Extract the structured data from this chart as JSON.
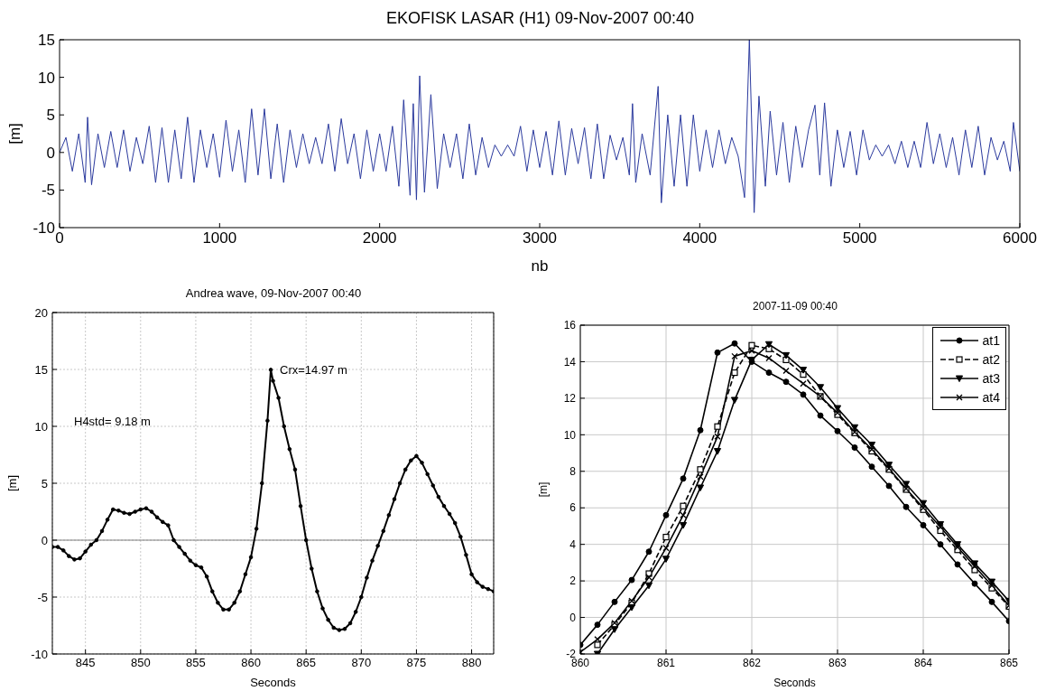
{
  "chart_data": [
    {
      "type": "line",
      "title": "EKOFISK LASAR (H1) 09-Nov-2007 00:40",
      "xlabel": "nb",
      "ylabel": "[m]",
      "xlim": [
        0,
        6000
      ],
      "xticks": [
        0,
        1000,
        2000,
        3000,
        4000,
        5000,
        6000
      ],
      "ylim": [
        -10,
        15
      ],
      "yticks": [
        -10,
        -5,
        0,
        5,
        10,
        15
      ],
      "grid": false,
      "legend": false,
      "marker": "none",
      "series": [
        {
          "color": "#2b3a9e",
          "x": [
            0,
            40,
            80,
            120,
            160,
            175,
            200,
            240,
            280,
            320,
            360,
            400,
            440,
            480,
            520,
            560,
            600,
            640,
            680,
            720,
            760,
            800,
            840,
            880,
            920,
            960,
            1000,
            1040,
            1080,
            1120,
            1160,
            1200,
            1240,
            1280,
            1320,
            1360,
            1400,
            1440,
            1480,
            1520,
            1560,
            1600,
            1640,
            1680,
            1720,
            1760,
            1800,
            1840,
            1880,
            1920,
            1960,
            2000,
            2040,
            2080,
            2120,
            2150,
            2190,
            2210,
            2230,
            2250,
            2280,
            2320,
            2360,
            2400,
            2440,
            2480,
            2520,
            2560,
            2600,
            2640,
            2680,
            2720,
            2760,
            2800,
            2840,
            2880,
            2920,
            2960,
            3000,
            3040,
            3080,
            3120,
            3160,
            3200,
            3240,
            3280,
            3320,
            3360,
            3400,
            3440,
            3480,
            3520,
            3560,
            3580,
            3600,
            3640,
            3690,
            3740,
            3760,
            3800,
            3840,
            3880,
            3920,
            3960,
            4000,
            4040,
            4080,
            4120,
            4160,
            4200,
            4240,
            4280,
            4310,
            4340,
            4370,
            4410,
            4440,
            4480,
            4520,
            4560,
            4600,
            4640,
            4680,
            4720,
            4750,
            4780,
            4820,
            4860,
            4900,
            4940,
            4980,
            5020,
            5060,
            5100,
            5140,
            5180,
            5220,
            5260,
            5300,
            5340,
            5380,
            5420,
            5460,
            5500,
            5540,
            5580,
            5620,
            5660,
            5700,
            5740,
            5780,
            5820,
            5860,
            5900,
            5940,
            5960,
            6000
          ],
          "values": [
            0,
            2,
            -2.5,
            2.5,
            -4,
            4.7,
            -4.3,
            2.5,
            -2,
            2.8,
            -2,
            3,
            -2.5,
            2,
            -1.5,
            3.5,
            -4,
            3.3,
            -4,
            3,
            -3.5,
            4.7,
            -4,
            3,
            -2,
            2.5,
            -3.3,
            4.3,
            -2.5,
            3,
            -4,
            5.8,
            -3,
            5.8,
            -3.5,
            3.8,
            -4,
            3,
            -2,
            2.5,
            -1.5,
            2,
            -1.5,
            3.8,
            -2.5,
            4.5,
            -1.5,
            2.5,
            -3.5,
            3,
            -2.5,
            2.5,
            -2.5,
            3.5,
            -4.5,
            7,
            -5.7,
            6.5,
            -6.3,
            10.2,
            -5.3,
            7.7,
            -4.8,
            2.5,
            -2,
            2.5,
            -3.5,
            3.8,
            -3,
            2,
            -2,
            1,
            -0.5,
            1,
            -0.5,
            3.5,
            -2.5,
            3,
            -2,
            2.8,
            -3,
            4.2,
            -3,
            3.2,
            -1.5,
            3.3,
            -3.5,
            3.8,
            -3.5,
            2.3,
            -1,
            2,
            -3,
            6.5,
            -4,
            2.5,
            -3,
            8.8,
            -6.7,
            5,
            -4.5,
            5,
            -4.5,
            5,
            -2.5,
            3,
            -2,
            3,
            -1.5,
            2,
            -0.5,
            -6,
            15,
            -8,
            7.5,
            -4.5,
            5.5,
            -3,
            4,
            -4,
            3.5,
            -2,
            3,
            6.3,
            -3,
            6.6,
            -4.5,
            3,
            -2,
            2.8,
            -3,
            3,
            -1,
            1,
            -0.5,
            1,
            -1.5,
            1.5,
            -2,
            1.5,
            -2,
            4,
            -1.5,
            2.5,
            -2,
            2,
            -3,
            3,
            -2,
            3.5,
            -3,
            2,
            -1,
            1.5,
            -2.5,
            4,
            -2.5
          ]
        }
      ]
    },
    {
      "type": "line",
      "title": "Andrea wave, 09-Nov-2007 00:40",
      "xlabel": "Seconds",
      "ylabel": "[m]",
      "xlim": [
        842,
        882
      ],
      "xticks": [
        845,
        850,
        855,
        860,
        865,
        870,
        875,
        880
      ],
      "ylim": [
        -10,
        20
      ],
      "yticks": [
        -10,
        -5,
        0,
        5,
        10,
        15,
        20
      ],
      "grid": true,
      "legend": false,
      "marker": "circle",
      "ref_lines": [
        {
          "axis": "y",
          "value": 0,
          "color": "#808080"
        }
      ],
      "annotations": [
        {
          "text": "Crx=14.97 m",
          "x": 861.8,
          "y": 14.97
        },
        "H4std= 9.18 m"
      ],
      "series": [
        {
          "color": "#000000",
          "x": [
            842,
            842.5,
            843,
            843.5,
            844,
            844.5,
            845,
            845.5,
            846,
            846.5,
            847,
            847.5,
            848,
            848.5,
            849,
            849.5,
            850,
            850.5,
            851,
            851.5,
            852,
            852.5,
            853,
            853.5,
            854,
            854.5,
            855,
            855.5,
            856,
            856.5,
            857,
            857.5,
            858,
            858.5,
            859,
            859.5,
            860,
            860.5,
            861,
            861.5,
            861.8,
            862,
            862.5,
            863,
            863.5,
            864,
            864.5,
            865,
            865.5,
            866,
            866.5,
            867,
            867.5,
            868,
            868.5,
            869,
            869.5,
            870,
            870.5,
            871,
            871.5,
            872,
            872.5,
            873,
            873.5,
            874,
            874.5,
            875,
            875.5,
            876,
            876.5,
            877,
            877.5,
            878,
            878.5,
            879,
            879.5,
            880,
            880.5,
            881,
            881.5,
            882
          ],
          "values": [
            -0.6,
            -0.6,
            -0.9,
            -1.4,
            -1.7,
            -1.6,
            -1,
            -0.4,
            0,
            0.8,
            1.8,
            2.7,
            2.6,
            2.4,
            2.3,
            2.5,
            2.7,
            2.8,
            2.5,
            2,
            1.6,
            1.3,
            0,
            -0.6,
            -1.2,
            -1.8,
            -2.2,
            -2.4,
            -3.2,
            -4.5,
            -5.5,
            -6.1,
            -6.1,
            -5.5,
            -4.5,
            -3,
            -1.5,
            1,
            5,
            10.5,
            14.97,
            14,
            12.5,
            10,
            8,
            6.2,
            3,
            0,
            -2.5,
            -4.5,
            -6,
            -7,
            -7.7,
            -7.9,
            -7.8,
            -7.3,
            -6.3,
            -5,
            -3.3,
            -1.8,
            -0.5,
            0.8,
            2.2,
            3.6,
            5,
            6.2,
            7,
            7.4,
            6.8,
            5.8,
            4.8,
            3.8,
            3,
            2.3,
            1.5,
            0.3,
            -1.3,
            -3,
            -3.7,
            -4.1,
            -4.3,
            -4.5
          ]
        }
      ]
    },
    {
      "type": "line",
      "title": "2007-11-09 00:40",
      "xlabel": "Seconds",
      "ylabel": "[m]",
      "xlim": [
        860,
        865
      ],
      "xticks": [
        860,
        861,
        862,
        863,
        864,
        865
      ],
      "ylim": [
        -2,
        16
      ],
      "yticks": [
        -2,
        0,
        2,
        4,
        6,
        8,
        10,
        12,
        14,
        16
      ],
      "grid": true,
      "legend": "top right",
      "x": [
        860,
        860.2,
        860.4,
        860.6,
        860.8,
        861,
        861.2,
        861.4,
        861.6,
        861.8,
        862,
        862.2,
        862.4,
        862.6,
        862.8,
        863,
        863.2,
        863.4,
        863.6,
        863.8,
        864,
        864.2,
        864.4,
        864.6,
        864.8,
        865
      ],
      "series": [
        {
          "name": "at1",
          "color": "#000000",
          "marker": "circle",
          "line_style": "solid",
          "values": [
            -1.5,
            -0.4,
            0.85,
            2.05,
            3.6,
            5.6,
            7.6,
            10.25,
            14.5,
            15,
            14,
            13.4,
            12.9,
            12.2,
            11.05,
            10.2,
            9.3,
            8.25,
            7.2,
            6.05,
            5.05,
            4,
            2.9,
            1.85,
            0.85,
            -0.2
          ]
        },
        {
          "name": "at2",
          "color": "#000000",
          "marker": "square",
          "line_style": "dashed",
          "values": [
            null,
            -1.5,
            -0.4,
            0.8,
            2.4,
            4.4,
            6.1,
            8.1,
            10.45,
            13.4,
            14.9,
            14.7,
            14.1,
            13.3,
            12.1,
            11.1,
            10.1,
            9.1,
            8.1,
            7,
            5.9,
            4.75,
            3.7,
            2.6,
            1.6,
            0.6
          ]
        },
        {
          "name": "at3",
          "color": "#000000",
          "marker": "triangle",
          "line_style": "solid",
          "values": [
            null,
            -2,
            -0.65,
            0.55,
            1.75,
            3.2,
            5.05,
            7.1,
            9.1,
            11.9,
            14.1,
            14.95,
            14.35,
            13.55,
            12.6,
            11.45,
            10.4,
            9.45,
            8.35,
            7.3,
            6.25,
            5.1,
            4,
            2.95,
            1.95,
            0.9
          ]
        },
        {
          "name": "at4",
          "color": "#000000",
          "marker": "cross",
          "line_style": "solid",
          "values": [
            -1.9,
            -1.2,
            -0.3,
            0.9,
            2.2,
            3.8,
            5.6,
            7.7,
            9.9,
            14.3,
            14.6,
            14.2,
            13.5,
            12.8,
            12.1,
            11.2,
            10.15,
            9.2,
            8.15,
            7.05,
            6,
            4.95,
            3.85,
            2.8,
            1.75,
            0.65
          ]
        }
      ]
    }
  ]
}
